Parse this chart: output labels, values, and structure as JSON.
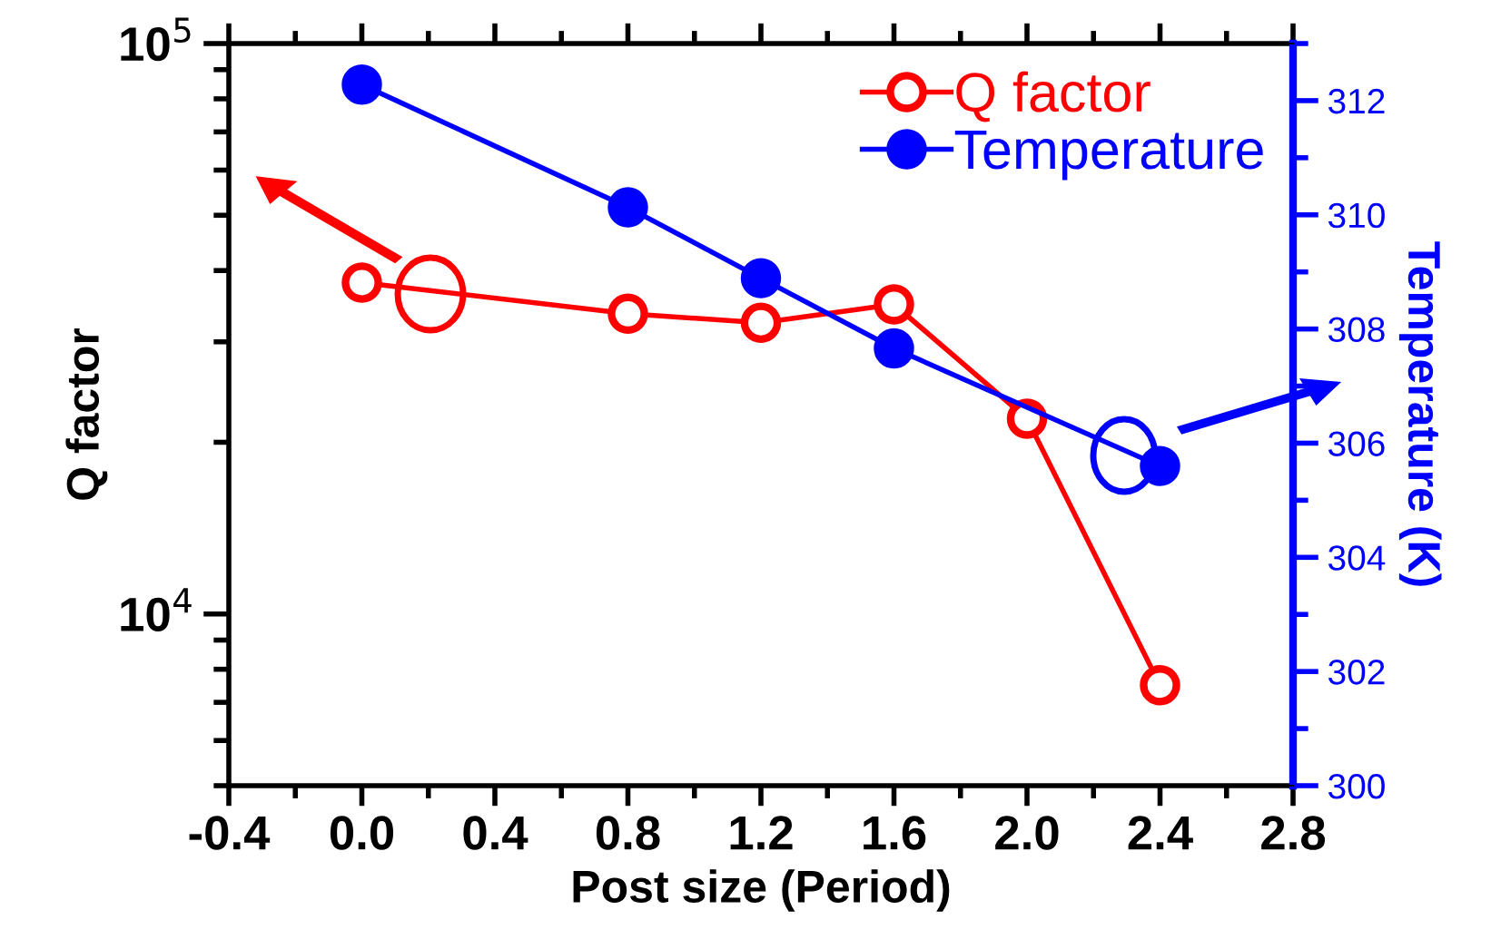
{
  "chart_data": {
    "type": "line",
    "xlabel": "Post size (Period)",
    "ylabel": "Q factor",
    "y2label": "Temperature (K)",
    "x": [
      0.0,
      0.8,
      1.2,
      1.6,
      2.0,
      2.4
    ],
    "series": [
      {
        "name": "Q factor",
        "color": "#ff0000",
        "marker": "circle",
        "values": [
          38100,
          33600,
          32400,
          34900,
          22000,
          7500
        ]
      },
      {
        "name": "Temperature",
        "color": "#0000ff",
        "marker": "circle",
        "axis": "y2",
        "x": [
          0.0,
          0.8,
          1.2,
          1.6,
          2.4
        ],
        "values": [
          312.28,
          310.13,
          308.89,
          307.66,
          305.6
        ]
      }
    ],
    "xlim": [
      -0.4,
      2.8
    ],
    "xticks": [
      {
        "value": -0.4,
        "label": "-0.4"
      },
      {
        "value": 0.0,
        "label": "0.0"
      },
      0.4,
      0.8,
      1.2,
      1.6,
      {
        "value": 2.0,
        "label": "2.0"
      },
      2.4,
      2.8
    ],
    "log": "y",
    "ylim": [
      5000,
      100000
    ],
    "yticks": [
      {
        "value": 10000,
        "label": "10$^{4}$"
      },
      {
        "value": 100000,
        "label": "10$^{5}$"
      }
    ],
    "y2lim": [
      300,
      313
    ],
    "y2ticks": [
      300,
      302,
      304,
      306,
      308,
      310,
      312
    ],
    "legend": "top right",
    "grid": false,
    "line_style": "solid"
  }
}
